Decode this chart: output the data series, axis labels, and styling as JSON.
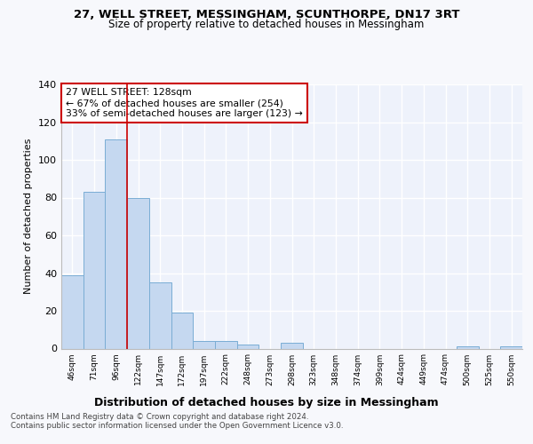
{
  "title1": "27, WELL STREET, MESSINGHAM, SCUNTHORPE, DN17 3RT",
  "title2": "Size of property relative to detached houses in Messingham",
  "xlabel": "Distribution of detached houses by size in Messingham",
  "ylabel": "Number of detached properties",
  "categories": [
    "46sqm",
    "71sqm",
    "96sqm",
    "122sqm",
    "147sqm",
    "172sqm",
    "197sqm",
    "222sqm",
    "248sqm",
    "273sqm",
    "298sqm",
    "323sqm",
    "348sqm",
    "374sqm",
    "399sqm",
    "424sqm",
    "449sqm",
    "474sqm",
    "500sqm",
    "525sqm",
    "550sqm"
  ],
  "values": [
    39,
    83,
    111,
    80,
    35,
    19,
    4,
    4,
    2,
    0,
    3,
    0,
    0,
    0,
    0,
    0,
    0,
    0,
    1,
    0,
    1
  ],
  "bar_color": "#c5d8f0",
  "bar_edge_color": "#7aadd4",
  "background_color": "#eef2fb",
  "grid_color": "#ffffff",
  "vline_x_index": 3,
  "vline_color": "#cc0000",
  "annotation_title": "27 WELL STREET: 128sqm",
  "annotation_line1": "← 67% of detached houses are smaller (254)",
  "annotation_line2": "33% of semi-detached houses are larger (123) →",
  "annotation_box_color": "#ffffff",
  "annotation_box_edge_color": "#cc0000",
  "ylim": [
    0,
    140
  ],
  "yticks": [
    0,
    20,
    40,
    60,
    80,
    100,
    120,
    140
  ],
  "footer1": "Contains HM Land Registry data © Crown copyright and database right 2024.",
  "footer2": "Contains public sector information licensed under the Open Government Licence v3.0.",
  "fig_bg": "#f7f8fc"
}
